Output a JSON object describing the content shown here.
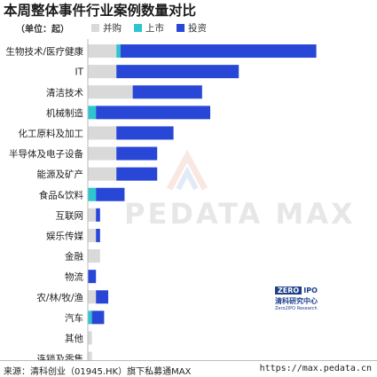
{
  "header": {
    "title": "本周整体事件行业案例数量对比",
    "unit": "（单位：起）"
  },
  "legend": [
    {
      "name": "并购",
      "color": "#d9d9d9"
    },
    {
      "name": "上市",
      "color": "#2ec5cf"
    },
    {
      "name": "投资",
      "color": "#2947d6"
    }
  ],
  "chart_data": {
    "type": "bar",
    "orientation": "horizontal",
    "stacked": true,
    "categories": [
      "生物技术/医疗健康",
      "IT",
      "清洁技术",
      "机械制造",
      "化工原料及加工",
      "半导体及电子设备",
      "能源及矿产",
      "食品&饮料",
      "互联网",
      "娱乐传媒",
      "金融",
      "物流",
      "农/林/牧/渔",
      "汽车",
      "其他",
      "连锁及零售"
    ],
    "series": [
      {
        "name": "并购",
        "values": [
          7,
          7,
          11,
          0,
          7,
          7,
          7,
          0,
          2,
          2,
          3,
          0,
          2,
          0,
          1,
          1
        ]
      },
      {
        "name": "上市",
        "values": [
          1,
          0,
          0,
          2,
          0,
          0,
          0,
          2,
          0,
          0,
          0,
          0,
          0,
          1,
          0,
          0
        ]
      },
      {
        "name": "投资",
        "values": [
          48,
          30,
          17,
          28,
          14,
          10,
          10,
          7,
          1,
          1,
          0,
          2,
          3,
          3,
          0,
          0
        ]
      }
    ],
    "xlim": [
      0,
      56
    ],
    "grid": false,
    "legend_position": "top-left"
  },
  "watermark": "PEDATA MAX",
  "logo": {
    "mark_left": "ZERO",
    "mark_right": "IPO",
    "cn": "清科研究中心",
    "en": "Zero2IPO Research"
  },
  "footer": {
    "source": "来源：清科创业（01945.HK）旗下私募通MAX",
    "url": "https://max.pedata.cn"
  }
}
